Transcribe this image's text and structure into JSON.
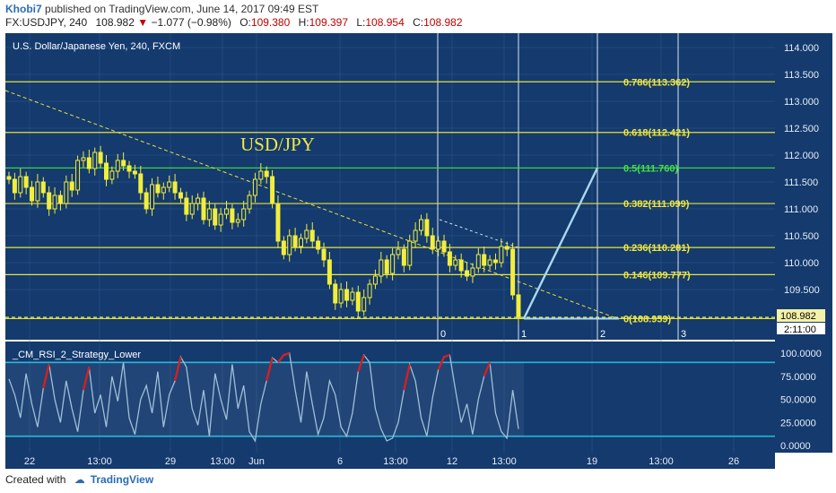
{
  "header": {
    "author": "Khobi7",
    "published": "published on TradingView.com, June 14, 2017 09:49 EST",
    "symbol": "FX:USDJPY, 240",
    "last": "108.982",
    "change": "−1.077 (−0.98%)",
    "open_label": "O:",
    "open": "109.380",
    "high_label": "H:",
    "high": "109.397",
    "low_label": "L:",
    "low": "108.954",
    "close_label": "C:",
    "close": "108.982"
  },
  "footer": {
    "created_with": "Created with",
    "brand": "TradingView"
  },
  "colors": {
    "panel": "#143a6e",
    "grid": "#2a5a8c",
    "candle": "#f2ee3c",
    "level": "#e8e33a",
    "level_green": "#3fd13f",
    "label": "#f0e842",
    "label_green": "#45e045",
    "rsi": "#9fbfd8",
    "rsi_hot": "#d61f1f",
    "band": "#25b6d6",
    "projection": "#a9d8f0"
  },
  "chart_data": [
    {
      "type": "candlestick",
      "title": "U.S. Dollar/Japanese Yen, 240, FXCM",
      "annotation": "USD/JPY",
      "ylim": [
        108.7,
        114.3
      ],
      "y_ticks": [
        "114.000",
        "113.500",
        "113.000",
        "112.500",
        "112.000",
        "111.500",
        "111.000",
        "110.500",
        "110.000",
        "109.500"
      ],
      "x_ticks": [
        "22",
        "13:00",
        "29",
        "13:00",
        "Jun",
        "6",
        "13:00",
        "12",
        "13:00",
        "19",
        "13:00",
        "26"
      ],
      "last_price": "108.982",
      "countdown": "2:11:00",
      "fib_levels": [
        {
          "ratio": "0.786",
          "price": 113.362,
          "label": "0.786(113.362)"
        },
        {
          "ratio": "0.618",
          "price": 112.421,
          "label": "0.618(112.421)"
        },
        {
          "ratio": "0.5",
          "price": 111.76,
          "label": "0.5(111.760)"
        },
        {
          "ratio": "0.382",
          "price": 111.099,
          "label": "0.382(111.099)"
        },
        {
          "ratio": "0.236",
          "price": 110.281,
          "label": "0.236(110.281)"
        },
        {
          "ratio": "0.146",
          "price": 109.777,
          "label": "0.146(109.777)"
        },
        {
          "ratio": "0",
          "price": 108.959,
          "label": "0(108.959)"
        }
      ],
      "time_zone_labels": [
        "0",
        "1",
        "2",
        "3"
      ],
      "closes": [
        111.55,
        111.3,
        111.6,
        111.4,
        111.15,
        111.5,
        111.3,
        111.0,
        111.25,
        111.1,
        111.5,
        111.35,
        111.9,
        111.95,
        111.75,
        112.05,
        111.85,
        111.55,
        111.7,
        111.9,
        111.8,
        111.7,
        111.65,
        111.3,
        111.0,
        111.45,
        111.3,
        111.4,
        111.5,
        111.3,
        111.2,
        110.9,
        111.1,
        111.2,
        110.8,
        111.0,
        110.7,
        110.9,
        111.0,
        110.75,
        110.8,
        111.0,
        111.25,
        111.55,
        111.7,
        111.6,
        111.1,
        110.4,
        110.15,
        110.5,
        110.3,
        110.45,
        110.6,
        110.4,
        110.25,
        110.05,
        109.6,
        109.25,
        109.5,
        109.3,
        109.45,
        109.1,
        109.35,
        109.6,
        109.75,
        110.05,
        109.8,
        110.15,
        110.25,
        109.95,
        110.4,
        110.6,
        110.8,
        110.5,
        110.25,
        110.4,
        110.2,
        109.95,
        110.05,
        109.85,
        109.75,
        109.9,
        110.15,
        109.95,
        110.05,
        110.0,
        110.3,
        110.25,
        109.4,
        108.98
      ],
      "projection": {
        "from_price": 108.959,
        "to_price": 111.76
      },
      "trendlines": [
        {
          "from_price": 113.2,
          "to_price": 108.95,
          "style": "dashed-yellow"
        },
        {
          "from_price": 110.8,
          "to_price": 110.28,
          "style": "dashed-blue"
        }
      ]
    },
    {
      "type": "line",
      "title": "_CM_RSI_2_Strategy_Lower",
      "ylim": [
        0,
        100
      ],
      "y_ticks": [
        "100.0000",
        "75.0000",
        "50.0000",
        "25.0000",
        "0.0000"
      ],
      "bands": [
        90,
        10
      ],
      "values": [
        72,
        55,
        30,
        78,
        45,
        20,
        62,
        88,
        50,
        25,
        70,
        40,
        15,
        60,
        85,
        35,
        55,
        20,
        75,
        48,
        90,
        30,
        12,
        50,
        65,
        35,
        80,
        20,
        55,
        70,
        96,
        85,
        40,
        22,
        60,
        10,
        78,
        50,
        28,
        88,
        40,
        65,
        15,
        5,
        45,
        70,
        95,
        90,
        98,
        100,
        60,
        25,
        80,
        45,
        12,
        30,
        70,
        55,
        20,
        10,
        35,
        80,
        98,
        90,
        40,
        18,
        5,
        8,
        25,
        60,
        88,
        70,
        30,
        10,
        52,
        82,
        96,
        98,
        60,
        25,
        45,
        12,
        50,
        75,
        90,
        35,
        15,
        8,
        60,
        18
      ]
    }
  ]
}
